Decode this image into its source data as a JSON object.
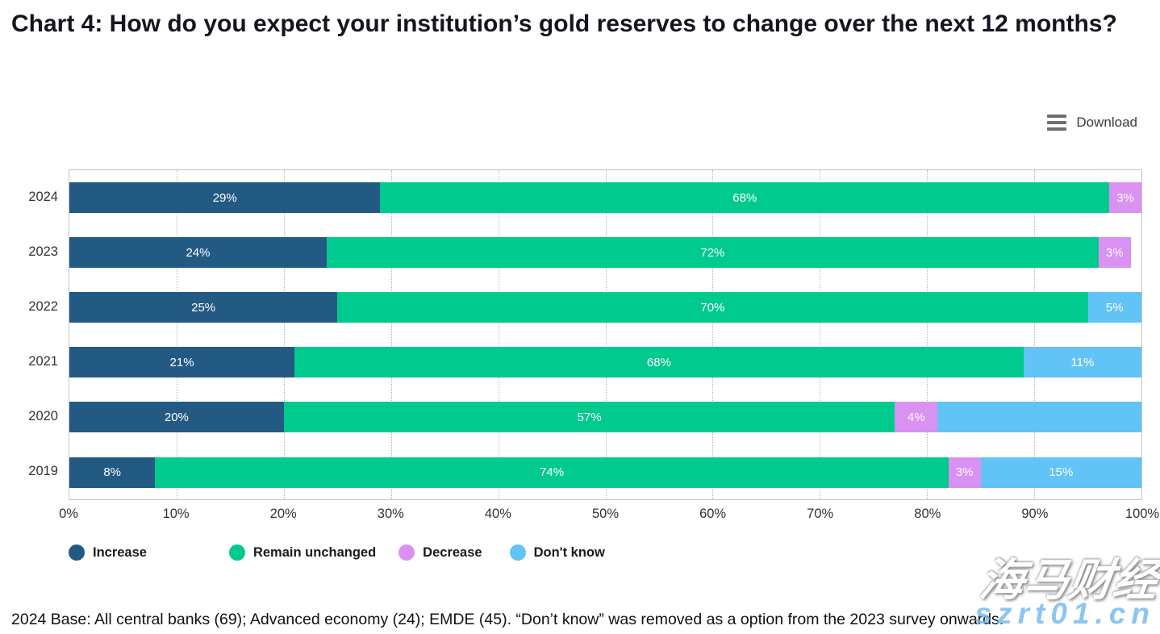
{
  "title": "Chart 4: How do you expect your institution’s gold reserves to change over the next 12 months?",
  "toolbar": {
    "download_label": "Download",
    "menu_icon": "hamburger-icon"
  },
  "chart_data": {
    "type": "bar",
    "orientation": "horizontal-stacked",
    "categories": [
      "2024",
      "2023",
      "2022",
      "2021",
      "2020",
      "2019"
    ],
    "series": [
      {
        "name": "Increase",
        "color": "#235a84",
        "values": [
          29,
          24,
          25,
          21,
          20,
          8
        ]
      },
      {
        "name": "Remain unchanged",
        "color": "#00ca8d",
        "values": [
          68,
          72,
          70,
          68,
          57,
          74
        ]
      },
      {
        "name": "Decrease",
        "color": "#d991f2",
        "values": [
          3,
          3,
          0,
          0,
          4,
          3
        ]
      },
      {
        "name": "Don't know",
        "color": "#62c3f7",
        "values": [
          0,
          0,
          5,
          11,
          19,
          15
        ]
      }
    ],
    "data_labels": [
      [
        "29%",
        "68%",
        "3%",
        ""
      ],
      [
        "24%",
        "72%",
        "3%",
        ""
      ],
      [
        "25%",
        "70%",
        "",
        "5%"
      ],
      [
        "21%",
        "68%",
        "",
        "11%"
      ],
      [
        "20%",
        "57%",
        "4%",
        ""
      ],
      [
        "8%",
        "74%",
        "3%",
        "15%"
      ]
    ],
    "x_ticks": [
      "0%",
      "10%",
      "20%",
      "30%",
      "40%",
      "50%",
      "60%",
      "70%",
      "80%",
      "90%",
      "100%"
    ],
    "xlim": [
      0,
      100
    ],
    "grid": "vertical-dotted",
    "legend_position": "bottom"
  },
  "footnote": "2024 Base: All central banks (69); Advanced economy (24); EMDE (45). “Don’t know” was removed as a option from the 2023 survey onwards.",
  "watermark": {
    "brand": "海马财经",
    "url_text": "szrt01.cn"
  }
}
